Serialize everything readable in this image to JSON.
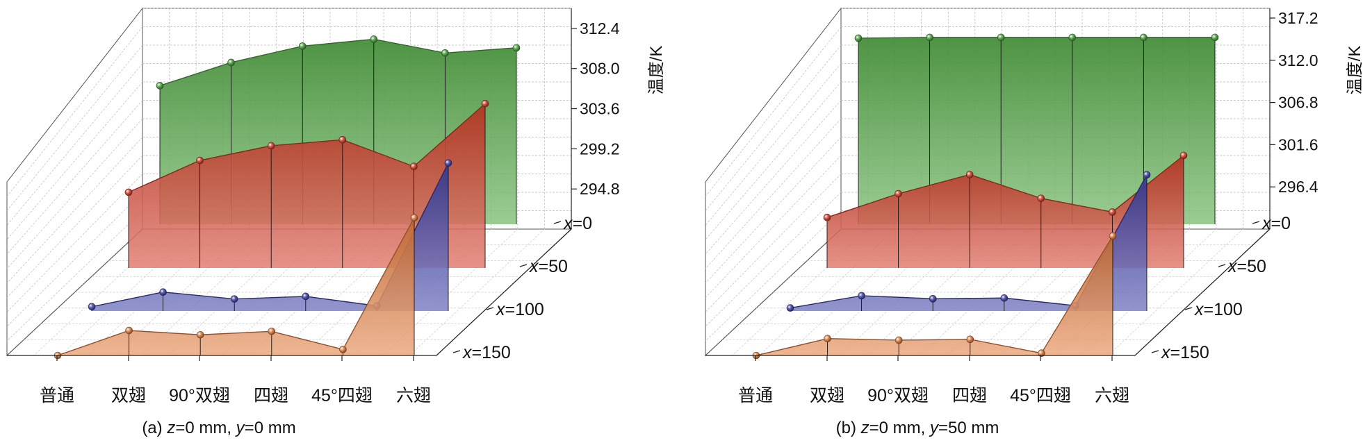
{
  "figure": {
    "panels": [
      {
        "caption_prefix": "(a) ",
        "caption_parts": [
          {
            "text": "z",
            "italic": true
          },
          {
            "text": "=0 mm, ",
            "italic": false
          },
          {
            "text": "y",
            "italic": true
          },
          {
            "text": "=0 mm",
            "italic": false
          }
        ]
      },
      {
        "caption_prefix": "(b) ",
        "caption_parts": [
          {
            "text": "z",
            "italic": true
          },
          {
            "text": "=0 mm, ",
            "italic": false
          },
          {
            "text": "y",
            "italic": true
          },
          {
            "text": "=50 mm",
            "italic": false
          }
        ]
      }
    ],
    "depth_label_var": "x",
    "depth_label_eq": "="
  },
  "chart_data": [
    {
      "type": "3d-area",
      "categories": [
        "普通",
        "双翅",
        "90°双翅",
        "四翅",
        "45°四翅",
        "六翅"
      ],
      "zlabel": "温度/K",
      "zticks": [
        294.8,
        299.2,
        303.6,
        308.0,
        312.4
      ],
      "zlim": [
        290.4,
        314.6
      ],
      "depth_categories": [
        "0",
        "50",
        "100",
        "150"
      ],
      "series": [
        {
          "name": "x=0",
          "color": "#4aa23c",
          "values": [
            306.5,
            309.2,
            311.1,
            311.9,
            310.3,
            310.9
          ]
        },
        {
          "name": "x=50",
          "color": "#d23a27",
          "values": [
            299.2,
            302.9,
            304.6,
            305.3,
            302.2,
            309.5
          ]
        },
        {
          "name": "x=100",
          "color": "#3b3fa6",
          "values": [
            290.9,
            292.6,
            291.8,
            292.1,
            291.0,
            307.6
          ]
        },
        {
          "name": "x=150",
          "color": "#e07a3c",
          "values": [
            290.4,
            293.3,
            292.8,
            293.2,
            291.1,
            306.4
          ]
        }
      ]
    },
    {
      "type": "3d-area",
      "categories": [
        "普通",
        "双翅",
        "90°双翅",
        "四翅",
        "45°四翅",
        "六翅"
      ],
      "zlabel": "温度/K",
      "zticks": [
        296.4,
        301.6,
        306.8,
        312.0,
        317.2
      ],
      "zlim": [
        291.2,
        318.4
      ],
      "depth_categories": [
        "0",
        "50",
        "100",
        "150"
      ],
      "series": [
        {
          "name": "x=0",
          "color": "#4aa23c",
          "values": [
            315.5,
            315.6,
            315.6,
            315.6,
            315.6,
            315.6
          ]
        },
        {
          "name": "x=50",
          "color": "#d23a27",
          "values": [
            297.8,
            300.9,
            303.4,
            300.3,
            298.5,
            305.9
          ]
        },
        {
          "name": "x=100",
          "color": "#3b3fa6",
          "values": [
            291.6,
            293.2,
            292.8,
            292.9,
            291.9,
            309.0
          ]
        },
        {
          "name": "x=150",
          "color": "#e07a3c",
          "values": [
            291.2,
            293.4,
            293.2,
            293.3,
            291.5,
            306.8
          ]
        }
      ]
    }
  ]
}
